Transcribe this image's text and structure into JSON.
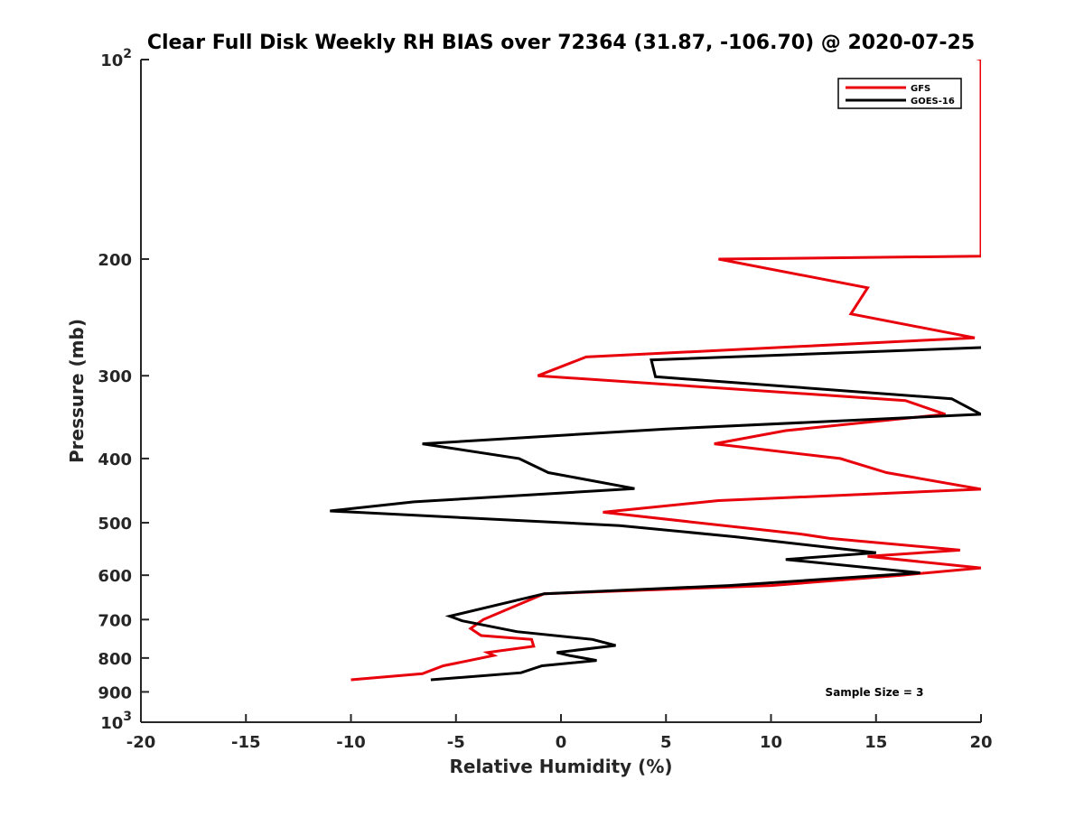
{
  "chart_data": {
    "type": "line",
    "title": "Clear Full Disk Weekly RH BIAS over 72364 (31.87, -106.70) @ 2020-07-25",
    "xlabel": "Relative Humidity (%)",
    "ylabel": "Pressure (mb)",
    "xlim": [
      -20,
      20
    ],
    "ylim": [
      100,
      1000
    ],
    "y_scale": "log",
    "y_reversed": true,
    "grid": false,
    "x_ticks": [
      -20,
      -15,
      -10,
      -5,
      0,
      5,
      10,
      15,
      20
    ],
    "x_tick_labels": [
      "-20",
      "-15",
      "-10",
      "-5",
      "0",
      "5",
      "10",
      "15",
      "20"
    ],
    "y_ticks": [
      100,
      200,
      300,
      400,
      500,
      600,
      700,
      800,
      900,
      1000
    ],
    "y_tick_labels": [
      "10^2",
      "200",
      "300",
      "400",
      "500",
      "600",
      "700",
      "800",
      "900",
      "10^3"
    ],
    "legend_position": "top-right",
    "annotation": "Sample Size = 3",
    "series": [
      {
        "name": "GFS",
        "color": "#e8000b",
        "x": [
          -10.0,
          -6.6,
          -5.6,
          -3.2,
          -3.5,
          -1.3,
          -1.4,
          -3.8,
          -4.3,
          -3.7,
          -0.8,
          10.0,
          16.2,
          20.0,
          14.6,
          19.0,
          12.8,
          11.4,
          2.0,
          7.5,
          20.0,
          15.5,
          13.3,
          7.3,
          10.7,
          18.3,
          16.4,
          -1.1,
          1.2,
          19.7,
          13.8,
          14.6,
          7.5,
          20.0,
          20.0,
          19.0
        ],
        "y": [
          863,
          845,
          822,
          793,
          785,
          768,
          750,
          740,
          722,
          700,
          640,
          622,
          600,
          585,
          562,
          550,
          528,
          520,
          482,
          463,
          445,
          420,
          400,
          380,
          363,
          343,
          327,
          300,
          281,
          263,
          242,
          221,
          200,
          198,
          100,
          98
        ]
      },
      {
        "name": "GOES-16",
        "color": "#000000",
        "x": [
          -6.2,
          -1.9,
          -0.9,
          1.7,
          0.4,
          -0.2,
          2.6,
          1.5,
          -2.1,
          -4.7,
          -5.3,
          -0.8,
          8.0,
          17.1,
          10.7,
          15.0,
          8.3,
          2.8,
          -11.0,
          -7.0,
          3.5,
          -0.6,
          -2.0,
          -6.6,
          5.0,
          20.0,
          18.6,
          4.5,
          4.3,
          20.0
        ],
        "y": [
          863,
          842,
          822,
          807,
          793,
          785,
          766,
          750,
          730,
          703,
          692,
          640,
          622,
          595,
          568,
          555,
          525,
          505,
          480,
          465,
          444,
          420,
          400,
          380,
          361,
          343,
          325,
          301,
          284,
          272
        ]
      }
    ]
  }
}
